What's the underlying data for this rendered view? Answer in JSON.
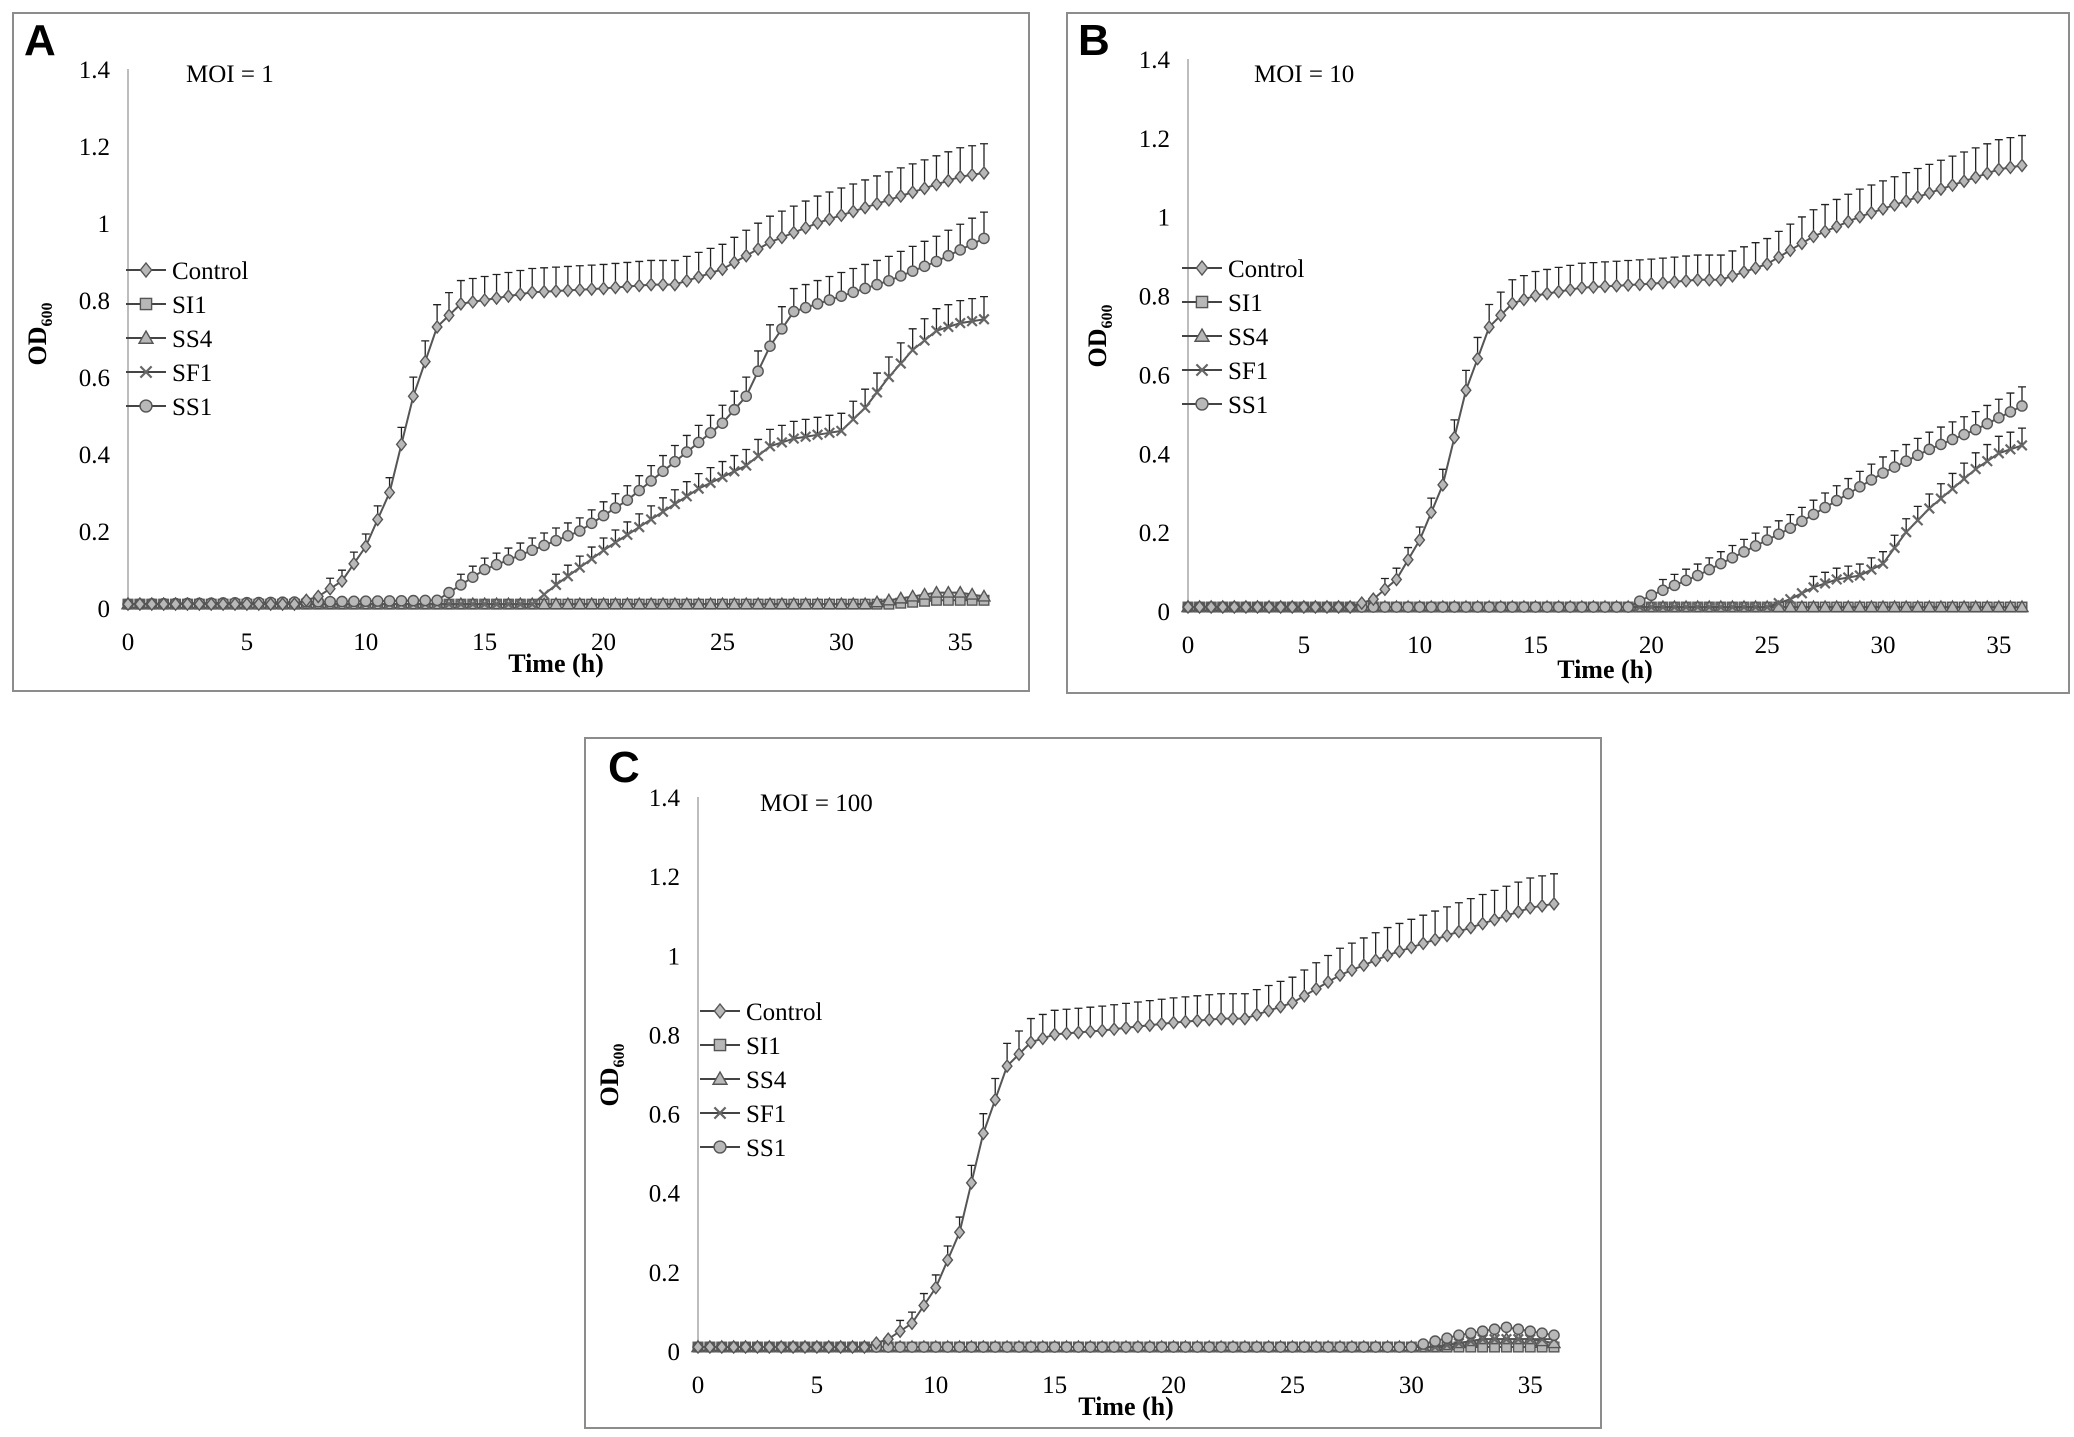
{
  "chart_data": [
    {
      "panel": "A",
      "type": "line",
      "title": "MOI = 1",
      "xlabel": "Time (h)",
      "ylabel_main": "OD",
      "ylabel_sub": "600",
      "xlim": [
        0,
        36
      ],
      "ylim": [
        0,
        1.4
      ],
      "x_ticks": [
        "0",
        "5",
        "10",
        "15",
        "20",
        "25",
        "30",
        "35"
      ],
      "y_ticks": [
        "0",
        "0.2",
        "0.4",
        "0.6",
        "0.8",
        "1",
        "1.2",
        "1.4"
      ],
      "legend": [
        "Control",
        "SI1",
        "SS4",
        "SF1",
        "SS1"
      ],
      "series": [
        {
          "name": "Control",
          "marker": "diamond",
          "error_bars": true,
          "points": [
            [
              0,
              0.01
            ],
            [
              7,
              0.01
            ],
            [
              8,
              0.03
            ],
            [
              9,
              0.07
            ],
            [
              10,
              0.16
            ],
            [
              11,
              0.3
            ],
            [
              12,
              0.55
            ],
            [
              13,
              0.73
            ],
            [
              14,
              0.79
            ],
            [
              15,
              0.8
            ],
            [
              17,
              0.82
            ],
            [
              20,
              0.83
            ],
            [
              22,
              0.84
            ],
            [
              23,
              0.84
            ],
            [
              25,
              0.88
            ],
            [
              27,
              0.95
            ],
            [
              29,
              1.0
            ],
            [
              31,
              1.04
            ],
            [
              33,
              1.08
            ],
            [
              35,
              1.12
            ],
            [
              36,
              1.13
            ]
          ]
        },
        {
          "name": "SI1",
          "marker": "square",
          "error_bars": false,
          "points": [
            [
              0,
              0.01
            ],
            [
              32,
              0.01
            ],
            [
              34,
              0.02
            ],
            [
              36,
              0.02
            ]
          ]
        },
        {
          "name": "SS4",
          "marker": "triangle",
          "error_bars": false,
          "points": [
            [
              0,
              0.01
            ],
            [
              31,
              0.01
            ],
            [
              33,
              0.03
            ],
            [
              34,
              0.04
            ],
            [
              35,
              0.04
            ],
            [
              36,
              0.03
            ]
          ]
        },
        {
          "name": "SF1",
          "marker": "x",
          "error_bars": true,
          "points": [
            [
              0,
              0.01
            ],
            [
              17,
              0.01
            ],
            [
              18,
              0.06
            ],
            [
              20,
              0.15
            ],
            [
              22,
              0.23
            ],
            [
              24,
              0.31
            ],
            [
              26,
              0.37
            ],
            [
              27,
              0.42
            ],
            [
              28,
              0.44
            ],
            [
              30,
              0.46
            ],
            [
              31,
              0.52
            ],
            [
              32,
              0.6
            ],
            [
              33,
              0.67
            ],
            [
              34,
              0.72
            ],
            [
              35,
              0.74
            ],
            [
              36,
              0.75
            ]
          ]
        },
        {
          "name": "SS1",
          "marker": "circle",
          "error_bars": true,
          "points": [
            [
              0,
              0.01
            ],
            [
              13,
              0.02
            ],
            [
              14,
              0.06
            ],
            [
              15,
              0.1
            ],
            [
              17,
              0.15
            ],
            [
              19,
              0.2
            ],
            [
              21,
              0.28
            ],
            [
              23,
              0.38
            ],
            [
              25,
              0.48
            ],
            [
              26,
              0.55
            ],
            [
              27,
              0.68
            ],
            [
              28,
              0.77
            ],
            [
              30,
              0.81
            ],
            [
              32,
              0.85
            ],
            [
              34,
              0.9
            ],
            [
              36,
              0.96
            ]
          ]
        }
      ]
    },
    {
      "panel": "B",
      "type": "line",
      "title": "MOI = 10",
      "xlabel": "Time (h)",
      "ylabel_main": "OD",
      "ylabel_sub": "600",
      "xlim": [
        0,
        36
      ],
      "ylim": [
        0,
        1.4
      ],
      "x_ticks": [
        "0",
        "5",
        "10",
        "15",
        "20",
        "25",
        "30",
        "35"
      ],
      "y_ticks": [
        "0",
        "0.2",
        "0.4",
        "0.6",
        "0.8",
        "1",
        "1.2",
        "1.4"
      ],
      "legend": [
        "Control",
        "SI1",
        "SS4",
        "SF1",
        "SS1"
      ],
      "series": [
        {
          "name": "Control",
          "marker": "diamond",
          "error_bars": true,
          "points": [
            [
              0,
              0.01
            ],
            [
              7,
              0.01
            ],
            [
              8,
              0.03
            ],
            [
              9,
              0.08
            ],
            [
              10,
              0.18
            ],
            [
              11,
              0.32
            ],
            [
              12,
              0.56
            ],
            [
              13,
              0.72
            ],
            [
              14,
              0.78
            ],
            [
              15,
              0.8
            ],
            [
              17,
              0.82
            ],
            [
              20,
              0.83
            ],
            [
              22,
              0.84
            ],
            [
              23,
              0.84
            ],
            [
              25,
              0.88
            ],
            [
              27,
              0.95
            ],
            [
              29,
              1.0
            ],
            [
              31,
              1.04
            ],
            [
              33,
              1.08
            ],
            [
              35,
              1.12
            ],
            [
              36,
              1.13
            ]
          ]
        },
        {
          "name": "SI1",
          "marker": "square",
          "error_bars": false,
          "points": [
            [
              0,
              0.01
            ],
            [
              36,
              0.01
            ]
          ]
        },
        {
          "name": "SS4",
          "marker": "triangle",
          "error_bars": false,
          "points": [
            [
              0,
              0.01
            ],
            [
              36,
              0.01
            ]
          ]
        },
        {
          "name": "SF1",
          "marker": "x",
          "error_bars": true,
          "points": [
            [
              0,
              0.01
            ],
            [
              25,
              0.01
            ],
            [
              26,
              0.03
            ],
            [
              27,
              0.06
            ],
            [
              28,
              0.08
            ],
            [
              29,
              0.09
            ],
            [
              30,
              0.12
            ],
            [
              31,
              0.2
            ],
            [
              32,
              0.26
            ],
            [
              33,
              0.31
            ],
            [
              34,
              0.36
            ],
            [
              35,
              0.4
            ],
            [
              36,
              0.42
            ]
          ]
        },
        {
          "name": "SS1",
          "marker": "circle",
          "error_bars": true,
          "points": [
            [
              0,
              0.01
            ],
            [
              19,
              0.01
            ],
            [
              20,
              0.04
            ],
            [
              22,
              0.09
            ],
            [
              24,
              0.15
            ],
            [
              26,
              0.21
            ],
            [
              28,
              0.28
            ],
            [
              30,
              0.35
            ],
            [
              32,
              0.41
            ],
            [
              34,
              0.46
            ],
            [
              35,
              0.49
            ],
            [
              36,
              0.52
            ]
          ]
        }
      ]
    },
    {
      "panel": "C",
      "type": "line",
      "title": "MOI = 100",
      "xlabel": "Time (h)",
      "ylabel_main": "OD",
      "ylabel_sub": "600",
      "xlim": [
        0,
        36
      ],
      "ylim": [
        0,
        1.4
      ],
      "x_ticks": [
        "0",
        "5",
        "10",
        "15",
        "20",
        "25",
        "30",
        "35"
      ],
      "y_ticks": [
        "0",
        "0.2",
        "0.4",
        "0.6",
        "0.8",
        "1",
        "1.2",
        "1.4"
      ],
      "legend": [
        "Control",
        "SI1",
        "SS4",
        "SF1",
        "SS1"
      ],
      "series": [
        {
          "name": "Control",
          "marker": "diamond",
          "error_bars": true,
          "points": [
            [
              0,
              0.01
            ],
            [
              7,
              0.01
            ],
            [
              8,
              0.03
            ],
            [
              9,
              0.07
            ],
            [
              10,
              0.16
            ],
            [
              11,
              0.3
            ],
            [
              12,
              0.55
            ],
            [
              13,
              0.72
            ],
            [
              14,
              0.78
            ],
            [
              15,
              0.8
            ],
            [
              17,
              0.81
            ],
            [
              20,
              0.83
            ],
            [
              22,
              0.84
            ],
            [
              23,
              0.84
            ],
            [
              25,
              0.88
            ],
            [
              27,
              0.95
            ],
            [
              29,
              1.0
            ],
            [
              31,
              1.04
            ],
            [
              33,
              1.08
            ],
            [
              35,
              1.12
            ],
            [
              36,
              1.13
            ]
          ]
        },
        {
          "name": "SI1",
          "marker": "square",
          "error_bars": false,
          "points": [
            [
              0,
              0.01
            ],
            [
              36,
              0.01
            ]
          ]
        },
        {
          "name": "SS4",
          "marker": "triangle",
          "error_bars": false,
          "points": [
            [
              0,
              0.01
            ],
            [
              31,
              0.01
            ],
            [
              33,
              0.03
            ],
            [
              35,
              0.03
            ],
            [
              36,
              0.02
            ]
          ]
        },
        {
          "name": "SF1",
          "marker": "x",
          "error_bars": false,
          "points": [
            [
              0,
              0.01
            ],
            [
              31,
              0.01
            ],
            [
              33,
              0.03
            ],
            [
              35,
              0.03
            ],
            [
              36,
              0.03
            ]
          ]
        },
        {
          "name": "SS1",
          "marker": "circle",
          "error_bars": false,
          "points": [
            [
              0,
              0.01
            ],
            [
              30,
              0.01
            ],
            [
              32,
              0.04
            ],
            [
              33,
              0.05
            ],
            [
              34,
              0.06
            ],
            [
              35,
              0.05
            ],
            [
              36,
              0.04
            ]
          ]
        }
      ]
    }
  ]
}
